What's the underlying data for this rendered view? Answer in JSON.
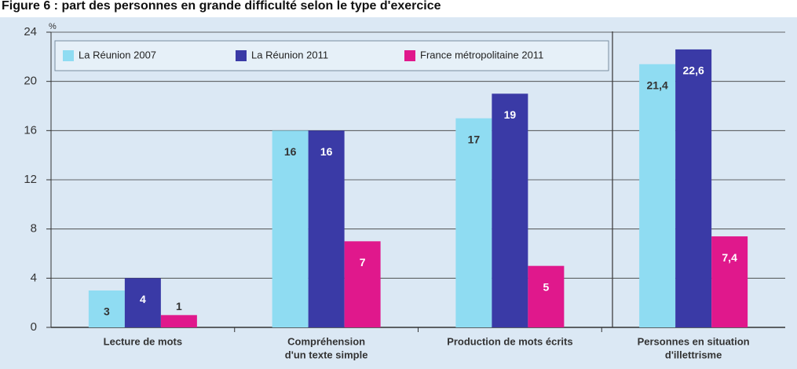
{
  "chart_data": {
    "type": "bar",
    "title": "Figure 6 : part des personnes en grande difficulté selon le type d'exercice",
    "y_unit": "%",
    "categories": [
      [
        "Lecture de mots"
      ],
      [
        "Compréhension",
        "d'un texte simple"
      ],
      [
        "Production de mots écrits"
      ],
      [
        "Personnes en situation",
        "d'illettrisme"
      ]
    ],
    "series": [
      {
        "name": "La Réunion 2007",
        "color": "#8fdcf2",
        "values": [
          3,
          16,
          17,
          21.4
        ],
        "value_labels": [
          "3",
          "16",
          "17",
          "21,4"
        ]
      },
      {
        "name": "La Réunion 2011",
        "color": "#3a3aa6",
        "values": [
          4,
          16,
          19,
          22.6
        ],
        "value_labels": [
          "4",
          "16",
          "19",
          "22,6"
        ]
      },
      {
        "name": "France métropolitaine 2011",
        "color": "#e0188c",
        "values": [
          1,
          7,
          5,
          7.4
        ],
        "value_labels": [
          "1",
          "7",
          "5",
          "7,4"
        ]
      }
    ],
    "ylim": [
      0,
      24
    ],
    "yticks": [
      0,
      4,
      8,
      12,
      16,
      20,
      24
    ],
    "grid": true
  }
}
